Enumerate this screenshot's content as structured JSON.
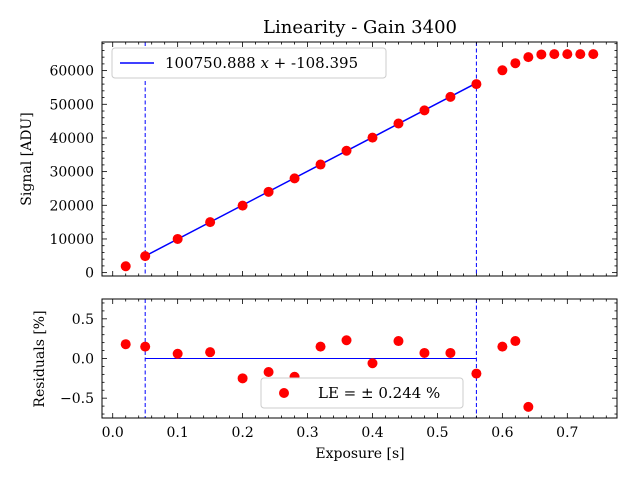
{
  "chart_data": [
    {
      "type": "scatter",
      "title": "Linearity - Gain 3400",
      "xlabel": "",
      "ylabel": "Signal [ADU]",
      "xlim": [
        -0.0165,
        0.7765
      ],
      "ylim": [
        -1000,
        68500
      ],
      "xticks": [
        0.0,
        0.1,
        0.2,
        0.3,
        0.4,
        0.5,
        0.6,
        0.7
      ],
      "yticks": [
        0,
        10000,
        20000,
        30000,
        40000,
        50000,
        60000
      ],
      "ytick_labels": [
        "0",
        "10000",
        "20000",
        "30000",
        "40000",
        "50000",
        "60000"
      ],
      "grid": false,
      "legend": {
        "placement": "top-left",
        "text_prefix": "100750.888 ",
        "text_var": "x",
        "text_suffix": " + -108.395"
      },
      "fit_line": {
        "slope": 100750.888,
        "intercept": -108.395,
        "x_range": [
          0.05,
          0.56
        ],
        "color": "#0000ff"
      },
      "limits": {
        "x": [
          0.05,
          0.56
        ],
        "color": "#0000ff"
      },
      "series": [
        {
          "color": "#ff0000",
          "x": [
            0.02,
            0.05,
            0.1,
            0.15,
            0.2,
            0.24,
            0.28,
            0.32,
            0.36,
            0.4,
            0.44,
            0.48,
            0.52,
            0.56,
            0.6,
            0.62,
            0.64,
            0.66,
            0.68,
            0.7,
            0.72,
            0.74
          ],
          "y": [
            1900,
            4900,
            10000,
            15000,
            19900,
            24000,
            28000,
            32100,
            36200,
            40100,
            44300,
            48200,
            52200,
            56000,
            60100,
            62200,
            64000,
            64800,
            64900,
            64900,
            64900,
            64900
          ]
        }
      ]
    },
    {
      "type": "scatter",
      "title": "",
      "xlabel": "Exposure [s]",
      "ylabel": "Residuals [%]",
      "xlim": [
        -0.0165,
        0.7765
      ],
      "ylim": [
        -0.75,
        0.75
      ],
      "xticks": [
        0.0,
        0.1,
        0.2,
        0.3,
        0.4,
        0.5,
        0.6,
        0.7
      ],
      "xtick_labels": [
        "0.0",
        "0.1",
        "0.2",
        "0.3",
        "0.4",
        "0.5",
        "0.6",
        "0.7"
      ],
      "yticks": [
        -0.5,
        0.0,
        0.5
      ],
      "ytick_labels": [
        "−0.5",
        "0.0",
        "0.5"
      ],
      "grid": false,
      "legend": {
        "placement": "lower-center",
        "text": "LE = ± 0.244 %"
      },
      "zero_line": {
        "x_range": [
          0.05,
          0.56
        ],
        "color": "#0000ff"
      },
      "limits": {
        "x": [
          0.05,
          0.56
        ],
        "color": "#0000ff"
      },
      "series": [
        {
          "color": "#ff0000",
          "x": [
            0.02,
            0.05,
            0.1,
            0.15,
            0.2,
            0.24,
            0.28,
            0.32,
            0.36,
            0.4,
            0.44,
            0.48,
            0.52,
            0.56,
            0.6,
            0.62,
            0.64
          ],
          "y": [
            0.18,
            0.15,
            0.06,
            0.08,
            -0.25,
            -0.17,
            -0.23,
            0.15,
            0.23,
            -0.06,
            0.22,
            0.07,
            0.07,
            -0.19,
            0.15,
            0.22,
            -0.61
          ]
        }
      ]
    }
  ]
}
